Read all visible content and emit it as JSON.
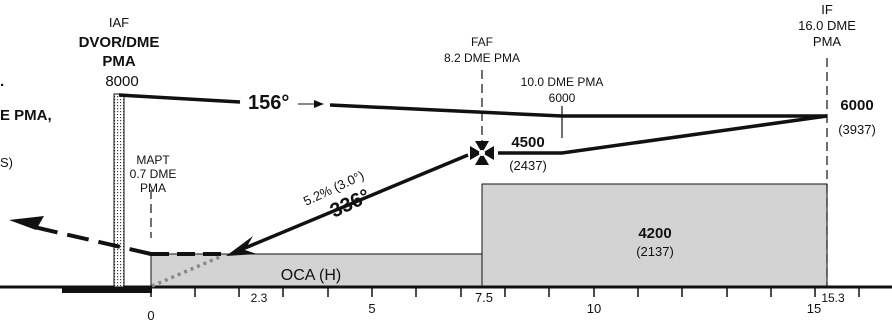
{
  "colors": {
    "ink": "#111111",
    "obstacle_fill": "#d3d3d3",
    "background": "#ffffff"
  },
  "iaf": {
    "label": "IAF",
    "facility": "DVOR/DME",
    "pma": "PMA",
    "altitude": "8000"
  },
  "left_fragments": {
    "dme_pma": "E PMA,",
    "paren": "S)",
    "dot": "."
  },
  "faf": {
    "label": "FAF",
    "dme": "8.2 DME PMA"
  },
  "if_fix": {
    "label": "IF",
    "dme": "16.0 DME",
    "pma": "PMA"
  },
  "stepdown": {
    "dme": "10.0 DME PMA",
    "altitude": "6000"
  },
  "mapt": {
    "label": "MAPT",
    "dme": "0.7 DME",
    "pma": "PMA"
  },
  "tracks": {
    "outbound": "156°",
    "inbound": "336°",
    "gradient": "5.2% (3.0°)"
  },
  "altitudes": {
    "if_altitude": "6000",
    "if_height": "(3937)",
    "faf_altitude": "4500",
    "faf_height": "(2437)"
  },
  "oca": {
    "intermediate": "4200",
    "intermediate_height": "(2137)",
    "final_label": "OCA (H)"
  },
  "distance_axis": {
    "major_labels": [
      "0",
      "5",
      "7.5",
      "10",
      "15"
    ],
    "minor_labels": [
      "2.3",
      "15.3"
    ]
  }
}
